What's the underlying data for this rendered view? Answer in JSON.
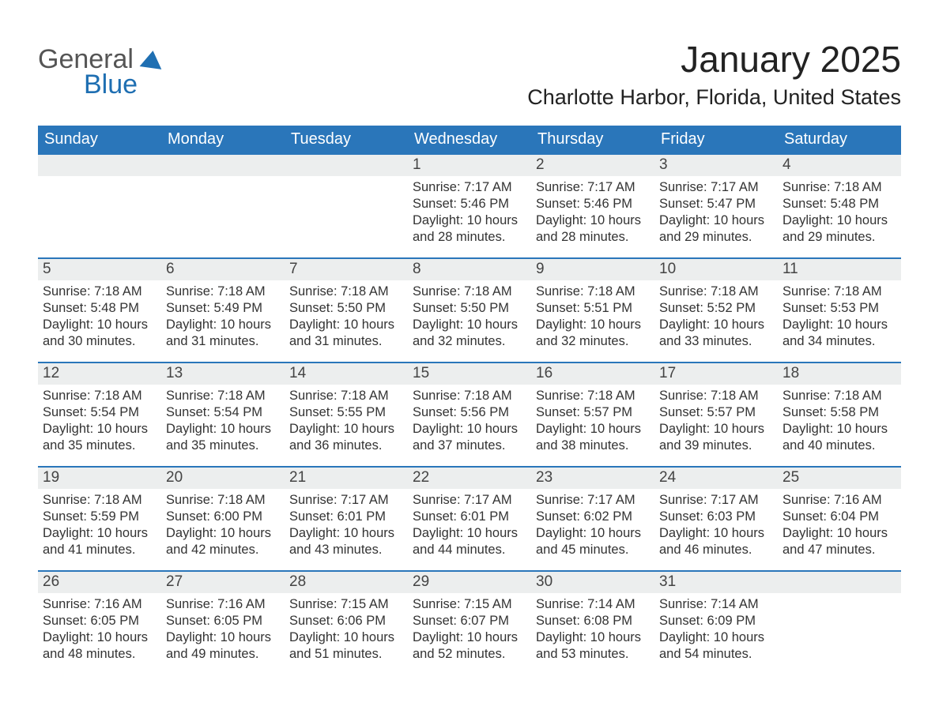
{
  "logo": {
    "word1": "General",
    "word2": "Blue"
  },
  "title": "January 2025",
  "location": "Charlotte Harbor, Florida, United States",
  "colors": {
    "header_bg": "#2a76ba",
    "header_text": "#ffffff",
    "daynum_bg": "#eceeee",
    "rule": "#2a76ba",
    "body_text": "#333333",
    "logo_blue": "#1f6fb2"
  },
  "weekdays": [
    "Sunday",
    "Monday",
    "Tuesday",
    "Wednesday",
    "Thursday",
    "Friday",
    "Saturday"
  ],
  "weeks": [
    [
      null,
      null,
      null,
      {
        "n": "1",
        "sunrise": "Sunrise: 7:17 AM",
        "sunset": "Sunset: 5:46 PM",
        "daylight": "Daylight: 10 hours and 28 minutes."
      },
      {
        "n": "2",
        "sunrise": "Sunrise: 7:17 AM",
        "sunset": "Sunset: 5:46 PM",
        "daylight": "Daylight: 10 hours and 28 minutes."
      },
      {
        "n": "3",
        "sunrise": "Sunrise: 7:17 AM",
        "sunset": "Sunset: 5:47 PM",
        "daylight": "Daylight: 10 hours and 29 minutes."
      },
      {
        "n": "4",
        "sunrise": "Sunrise: 7:18 AM",
        "sunset": "Sunset: 5:48 PM",
        "daylight": "Daylight: 10 hours and 29 minutes."
      }
    ],
    [
      {
        "n": "5",
        "sunrise": "Sunrise: 7:18 AM",
        "sunset": "Sunset: 5:48 PM",
        "daylight": "Daylight: 10 hours and 30 minutes."
      },
      {
        "n": "6",
        "sunrise": "Sunrise: 7:18 AM",
        "sunset": "Sunset: 5:49 PM",
        "daylight": "Daylight: 10 hours and 31 minutes."
      },
      {
        "n": "7",
        "sunrise": "Sunrise: 7:18 AM",
        "sunset": "Sunset: 5:50 PM",
        "daylight": "Daylight: 10 hours and 31 minutes."
      },
      {
        "n": "8",
        "sunrise": "Sunrise: 7:18 AM",
        "sunset": "Sunset: 5:50 PM",
        "daylight": "Daylight: 10 hours and 32 minutes."
      },
      {
        "n": "9",
        "sunrise": "Sunrise: 7:18 AM",
        "sunset": "Sunset: 5:51 PM",
        "daylight": "Daylight: 10 hours and 32 minutes."
      },
      {
        "n": "10",
        "sunrise": "Sunrise: 7:18 AM",
        "sunset": "Sunset: 5:52 PM",
        "daylight": "Daylight: 10 hours and 33 minutes."
      },
      {
        "n": "11",
        "sunrise": "Sunrise: 7:18 AM",
        "sunset": "Sunset: 5:53 PM",
        "daylight": "Daylight: 10 hours and 34 minutes."
      }
    ],
    [
      {
        "n": "12",
        "sunrise": "Sunrise: 7:18 AM",
        "sunset": "Sunset: 5:54 PM",
        "daylight": "Daylight: 10 hours and 35 minutes."
      },
      {
        "n": "13",
        "sunrise": "Sunrise: 7:18 AM",
        "sunset": "Sunset: 5:54 PM",
        "daylight": "Daylight: 10 hours and 35 minutes."
      },
      {
        "n": "14",
        "sunrise": "Sunrise: 7:18 AM",
        "sunset": "Sunset: 5:55 PM",
        "daylight": "Daylight: 10 hours and 36 minutes."
      },
      {
        "n": "15",
        "sunrise": "Sunrise: 7:18 AM",
        "sunset": "Sunset: 5:56 PM",
        "daylight": "Daylight: 10 hours and 37 minutes."
      },
      {
        "n": "16",
        "sunrise": "Sunrise: 7:18 AM",
        "sunset": "Sunset: 5:57 PM",
        "daylight": "Daylight: 10 hours and 38 minutes."
      },
      {
        "n": "17",
        "sunrise": "Sunrise: 7:18 AM",
        "sunset": "Sunset: 5:57 PM",
        "daylight": "Daylight: 10 hours and 39 minutes."
      },
      {
        "n": "18",
        "sunrise": "Sunrise: 7:18 AM",
        "sunset": "Sunset: 5:58 PM",
        "daylight": "Daylight: 10 hours and 40 minutes."
      }
    ],
    [
      {
        "n": "19",
        "sunrise": "Sunrise: 7:18 AM",
        "sunset": "Sunset: 5:59 PM",
        "daylight": "Daylight: 10 hours and 41 minutes."
      },
      {
        "n": "20",
        "sunrise": "Sunrise: 7:18 AM",
        "sunset": "Sunset: 6:00 PM",
        "daylight": "Daylight: 10 hours and 42 minutes."
      },
      {
        "n": "21",
        "sunrise": "Sunrise: 7:17 AM",
        "sunset": "Sunset: 6:01 PM",
        "daylight": "Daylight: 10 hours and 43 minutes."
      },
      {
        "n": "22",
        "sunrise": "Sunrise: 7:17 AM",
        "sunset": "Sunset: 6:01 PM",
        "daylight": "Daylight: 10 hours and 44 minutes."
      },
      {
        "n": "23",
        "sunrise": "Sunrise: 7:17 AM",
        "sunset": "Sunset: 6:02 PM",
        "daylight": "Daylight: 10 hours and 45 minutes."
      },
      {
        "n": "24",
        "sunrise": "Sunrise: 7:17 AM",
        "sunset": "Sunset: 6:03 PM",
        "daylight": "Daylight: 10 hours and 46 minutes."
      },
      {
        "n": "25",
        "sunrise": "Sunrise: 7:16 AM",
        "sunset": "Sunset: 6:04 PM",
        "daylight": "Daylight: 10 hours and 47 minutes."
      }
    ],
    [
      {
        "n": "26",
        "sunrise": "Sunrise: 7:16 AM",
        "sunset": "Sunset: 6:05 PM",
        "daylight": "Daylight: 10 hours and 48 minutes."
      },
      {
        "n": "27",
        "sunrise": "Sunrise: 7:16 AM",
        "sunset": "Sunset: 6:05 PM",
        "daylight": "Daylight: 10 hours and 49 minutes."
      },
      {
        "n": "28",
        "sunrise": "Sunrise: 7:15 AM",
        "sunset": "Sunset: 6:06 PM",
        "daylight": "Daylight: 10 hours and 51 minutes."
      },
      {
        "n": "29",
        "sunrise": "Sunrise: 7:15 AM",
        "sunset": "Sunset: 6:07 PM",
        "daylight": "Daylight: 10 hours and 52 minutes."
      },
      {
        "n": "30",
        "sunrise": "Sunrise: 7:14 AM",
        "sunset": "Sunset: 6:08 PM",
        "daylight": "Daylight: 10 hours and 53 minutes."
      },
      {
        "n": "31",
        "sunrise": "Sunrise: 7:14 AM",
        "sunset": "Sunset: 6:09 PM",
        "daylight": "Daylight: 10 hours and 54 minutes."
      },
      null
    ]
  ]
}
